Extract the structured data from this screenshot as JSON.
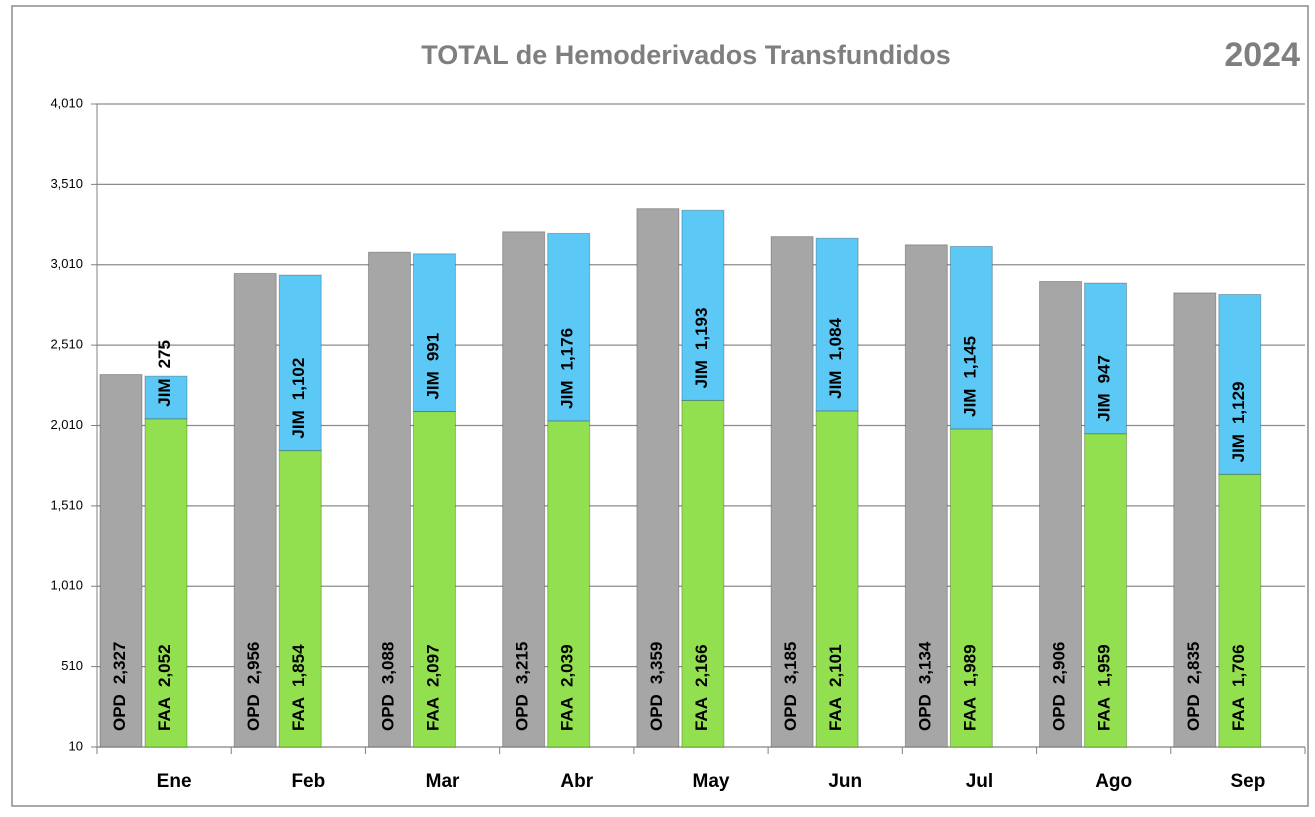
{
  "chart_data": {
    "type": "grouped_stacked_bar",
    "title": "TOTAL de Hemoderivados Transfundidos",
    "annotation": "2024",
    "categories": [
      "Ene",
      "Feb",
      "Mar",
      "Abr",
      "May",
      "Jun",
      "Jul",
      "Ago",
      "Sep"
    ],
    "series": [
      {
        "name": "OPD",
        "color": "#a6a6a6",
        "stack": "a",
        "values": [
          2327,
          2956,
          3088,
          3215,
          3359,
          3185,
          3134,
          2906,
          2835
        ],
        "value_labels": [
          "2,327",
          "2,956",
          "3,088",
          "3,215",
          "3,359",
          "3,185",
          "3,134",
          "2,906",
          "2,835"
        ]
      },
      {
        "name": "FAA",
        "color": "#92e050",
        "stack": "b",
        "values": [
          2052,
          1854,
          2097,
          2039,
          2166,
          2101,
          1989,
          1959,
          1706
        ],
        "value_labels": [
          "2,052",
          "1,854",
          "2,097",
          "2,039",
          "2,166",
          "2,101",
          "1,989",
          "1,959",
          "1,706"
        ]
      },
      {
        "name": "JIM",
        "color": "#5cc8f5",
        "stack": "b",
        "values": [
          275,
          1102,
          991,
          1176,
          1193,
          1084,
          1145,
          947,
          1129
        ],
        "value_labels": [
          "275",
          "1,102",
          "991",
          "1,176",
          "1,193",
          "1,084",
          "1,145",
          "947",
          "1,129"
        ]
      }
    ],
    "ylim": [
      10,
      4010
    ],
    "yticks": [
      10,
      510,
      {
        "value": 1010,
        "label": "1,010"
      },
      {
        "value": 1510,
        "label": "1,510"
      },
      {
        "value": 2010,
        "label": "2,010"
      },
      {
        "value": 2510,
        "label": "2,510"
      },
      {
        "value": 3010,
        "label": "3,010"
      },
      {
        "value": 3510,
        "label": "3,510"
      },
      {
        "value": 4010,
        "label": "4,010"
      }
    ],
    "grid": true
  }
}
